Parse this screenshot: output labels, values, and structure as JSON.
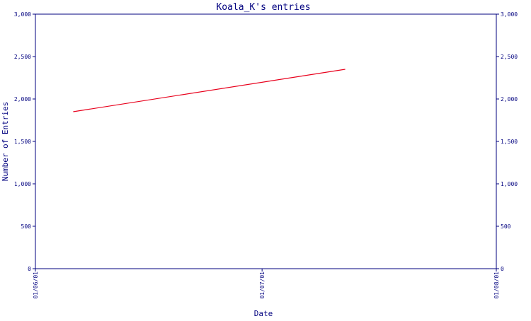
{
  "chart_data": {
    "type": "line",
    "title": "Koala_K's entries",
    "xlabel": "Date",
    "ylabel": "Number of Entries",
    "y_right_axis": true,
    "xlim": [
      "2001-06-01",
      "2001-08-01"
    ],
    "ylim": [
      0,
      3000
    ],
    "y_ticks": [
      0,
      500,
      1000,
      1500,
      2000,
      2500,
      3000
    ],
    "y_tick_labels": [
      "0",
      "500",
      "1,000",
      "1,500",
      "2,000",
      "2,500",
      "3,000"
    ],
    "x_ticks": [
      "2001-06-01",
      "2001-07-01",
      "2001-08-01"
    ],
    "x_tick_labels": [
      "01/06/01",
      "01/07/01",
      "01/08/01"
    ],
    "grid": false,
    "series": [
      {
        "color": "#e8001c",
        "points": [
          {
            "x": "2001-06-06",
            "y": 1850
          },
          {
            "x": "2001-07-12",
            "y": 2350
          }
        ]
      }
    ]
  },
  "colors": {
    "axis": "#00007f",
    "text": "#00007f",
    "line": "#e8001c",
    "background": "#ffffff"
  }
}
